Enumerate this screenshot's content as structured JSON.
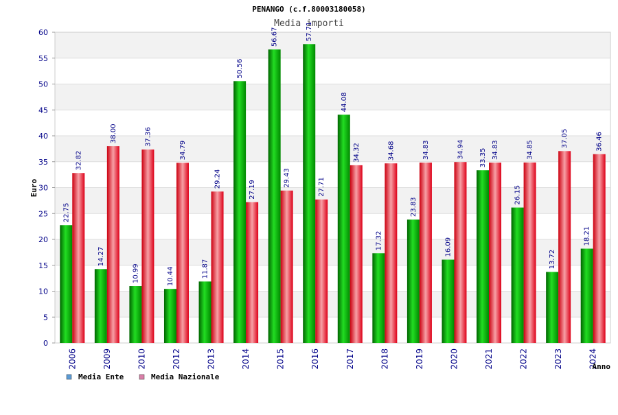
{
  "chart_data": {
    "type": "bar",
    "title": "PENANGO (c.f.80003180058)",
    "subtitle": "Media importi",
    "xlabel": "Anno",
    "ylabel": "Euro",
    "ylim": [
      0,
      60
    ],
    "yticks": [
      0,
      5,
      10,
      15,
      20,
      25,
      30,
      35,
      40,
      45,
      50,
      55,
      60
    ],
    "categories": [
      "2006",
      "2009",
      "2010",
      "2012",
      "2013",
      "2014",
      "2015",
      "2016",
      "2017",
      "2018",
      "2019",
      "2020",
      "2021",
      "2022",
      "2023",
      "2024"
    ],
    "series": [
      {
        "name": "Media Ente",
        "color": "#00b400",
        "legend_color": "#5b9bd5",
        "values": [
          22.75,
          14.27,
          10.99,
          10.44,
          11.87,
          50.56,
          56.67,
          57.71,
          44.08,
          17.32,
          23.83,
          16.09,
          33.35,
          26.15,
          13.72,
          18.21
        ],
        "labels": [
          "22.75",
          "14.27",
          "10.99",
          "10.44",
          "11.87",
          "50.56",
          "56.67",
          "57.71",
          "44.08",
          "17.32",
          "23.83",
          "16.09",
          "33.35",
          "26.15",
          "13.72",
          "18.21"
        ]
      },
      {
        "name": "Media Nazionale",
        "color": "#e8202a",
        "legend_color": "#d97fa8",
        "values": [
          32.82,
          38.0,
          37.36,
          34.79,
          29.24,
          27.19,
          29.43,
          27.71,
          34.32,
          34.68,
          34.83,
          34.94,
          34.83,
          34.85,
          37.05,
          36.46
        ],
        "labels": [
          "32.82",
          "38.00",
          "37.36",
          "34.79",
          "29.24",
          "27.19",
          "29.43",
          "27.71",
          "34.32",
          "34.68",
          "34.83",
          "34.94",
          "34.83",
          "34.85",
          "37.05",
          "36.46"
        ]
      }
    ],
    "grid": true,
    "legend_position": "bottom-left"
  }
}
